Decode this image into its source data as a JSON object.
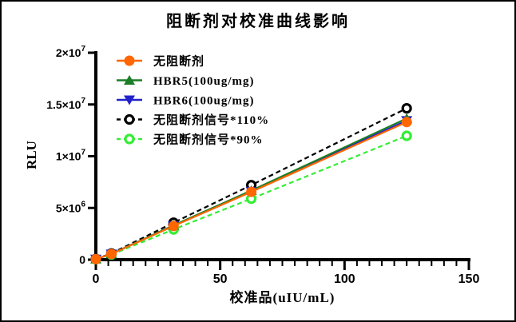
{
  "figure": {
    "background": "#ffffff",
    "border_color": "#000000",
    "text_color": "#000000"
  },
  "chart_data": {
    "type": "line",
    "title": "阻断剂对校准曲线影响",
    "xlabel": "校准品(uIU/mL)",
    "ylabel": "RLU",
    "xlim": [
      0,
      150
    ],
    "ylim": [
      0,
      20000000
    ],
    "grid": false,
    "legend_position": "top-left-inside",
    "xticks_major": [
      0,
      50,
      100,
      150
    ],
    "xtick_minor_step": 5,
    "yticks": [
      {
        "value": 0,
        "text": "0",
        "sup": ""
      },
      {
        "value": 5000000,
        "text": "5×10",
        "sup": "6"
      },
      {
        "value": 10000000,
        "text": "1×10",
        "sup": "7"
      },
      {
        "value": 15000000,
        "text": "1.5×10",
        "sup": "7"
      },
      {
        "value": 20000000,
        "text": "2×10",
        "sup": "7"
      }
    ],
    "x": [
      0,
      6.25,
      31.25,
      62.5,
      125
    ],
    "series": [
      {
        "name": "无阻断剂",
        "color": "#FF6600",
        "marker": "circle-filled",
        "line": "solid",
        "values": [
          60000,
          550000,
          3250000,
          6550000,
          13300000
        ]
      },
      {
        "name": "HBR5(100ug/mg)",
        "color": "#1B7E27",
        "marker": "triangle-up",
        "line": "solid",
        "values": [
          60000,
          560000,
          3320000,
          6680000,
          13650000
        ]
      },
      {
        "name": "HBR6(100ug/mg)",
        "color": "#2121CC",
        "marker": "triangle-down",
        "line": "solid",
        "values": [
          60000,
          555000,
          3280000,
          6600000,
          13450000
        ]
      },
      {
        "name": "无阻断剂信号*110%",
        "color": "#000000",
        "marker": "circle-open",
        "line": "dashed",
        "values": [
          66000,
          605000,
          3575000,
          7205000,
          14630000
        ]
      },
      {
        "name": "无阻断剂信号*90%",
        "color": "#33EE33",
        "marker": "circle-open",
        "line": "dashed",
        "values": [
          54000,
          495000,
          2925000,
          5895000,
          11970000
        ]
      }
    ]
  }
}
